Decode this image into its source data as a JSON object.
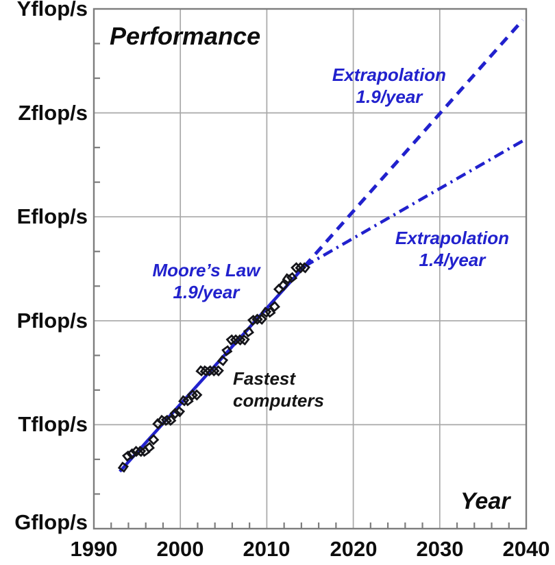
{
  "colors": {
    "accent_blue": "#2121cd",
    "grid_gray": "#a8a8a8",
    "border_gray": "#7d7d7d",
    "marker_black": "#15151a",
    "text_black": "#0d0d0d"
  },
  "chart_data": {
    "type": "scatter",
    "title": "Performance",
    "xlabel": "Year",
    "grid": true,
    "xlim": [
      1990,
      2040
    ],
    "ylim_log10_flops": [
      9,
      24
    ],
    "x_ticks": [
      1990,
      2000,
      2010,
      2020,
      2030,
      2040
    ],
    "x_minor_step_years": 2,
    "y_ticks": [
      {
        "label": "Gflop/s",
        "log10": 9
      },
      {
        "label": "Tflop/s",
        "log10": 12
      },
      {
        "label": "Pflop/s",
        "log10": 15
      },
      {
        "label": "Eflop/s",
        "log10": 18
      },
      {
        "label": "Zflop/s",
        "log10": 21
      },
      {
        "label": "Yflop/s",
        "log10": 24
      }
    ],
    "y_minor_step_decades": 1,
    "annotations": {
      "moores_law": {
        "line1": "Moore’s Law",
        "line2": "1.9/year"
      },
      "extrapolation_19": {
        "line1": "Extrapolation",
        "line2": "1.9/year"
      },
      "extrapolation_14": {
        "line1": "Extrapolation",
        "line2": "1.4/year"
      },
      "fastest_computers": {
        "line1": "Fastest",
        "line2": "computers"
      }
    },
    "series": [
      {
        "name": "Fastest computers",
        "marker": "open-diamond",
        "units": "Gflop/s",
        "points": [
          [
            1993.4,
            59.7
          ],
          [
            1993.9,
            124
          ],
          [
            1994.4,
            143.4
          ],
          [
            1994.9,
            170
          ],
          [
            1995.4,
            170
          ],
          [
            1995.9,
            170
          ],
          [
            1996.4,
            220.4
          ],
          [
            1996.9,
            368.2
          ],
          [
            1997.4,
            1068
          ],
          [
            1997.9,
            1338
          ],
          [
            1998.4,
            1338
          ],
          [
            1998.9,
            1338
          ],
          [
            1999.4,
            2121
          ],
          [
            1999.9,
            2379
          ],
          [
            2000.4,
            4938
          ],
          [
            2000.9,
            4938
          ],
          [
            2001.4,
            7226
          ],
          [
            2001.9,
            7226
          ],
          [
            2002.4,
            35860
          ],
          [
            2002.9,
            35860
          ],
          [
            2003.4,
            35860
          ],
          [
            2003.9,
            35860
          ],
          [
            2004.4,
            35860
          ],
          [
            2004.9,
            70720
          ],
          [
            2005.4,
            136800
          ],
          [
            2005.9,
            280600
          ],
          [
            2006.4,
            280600
          ],
          [
            2006.9,
            280600
          ],
          [
            2007.4,
            280600
          ],
          [
            2007.9,
            478200
          ],
          [
            2008.4,
            1026000
          ],
          [
            2008.9,
            1105000
          ],
          [
            2009.4,
            1105000
          ],
          [
            2009.9,
            1759000
          ],
          [
            2010.4,
            1759000
          ],
          [
            2010.9,
            2566000
          ],
          [
            2011.4,
            8162000
          ],
          [
            2011.9,
            10510000
          ],
          [
            2012.4,
            16320000
          ],
          [
            2012.9,
            17590000
          ],
          [
            2013.4,
            33860000
          ],
          [
            2013.9,
            33860000
          ],
          [
            2014.4,
            33860000
          ]
        ]
      }
    ],
    "lines": [
      {
        "name": "moores-law-fit",
        "style": "solid",
        "from": [
          1993.0,
          10.65
        ],
        "to": [
          2014.35,
          16.57
        ]
      },
      {
        "name": "extrapolation-1.9",
        "style": "dashed",
        "from": [
          2014.35,
          16.57
        ],
        "to": [
          2039.6,
          23.68
        ]
      },
      {
        "name": "extrapolation-1.4",
        "style": "dashdot",
        "from": [
          2014.35,
          16.57
        ],
        "to": [
          2040.0,
          20.25
        ]
      }
    ]
  }
}
